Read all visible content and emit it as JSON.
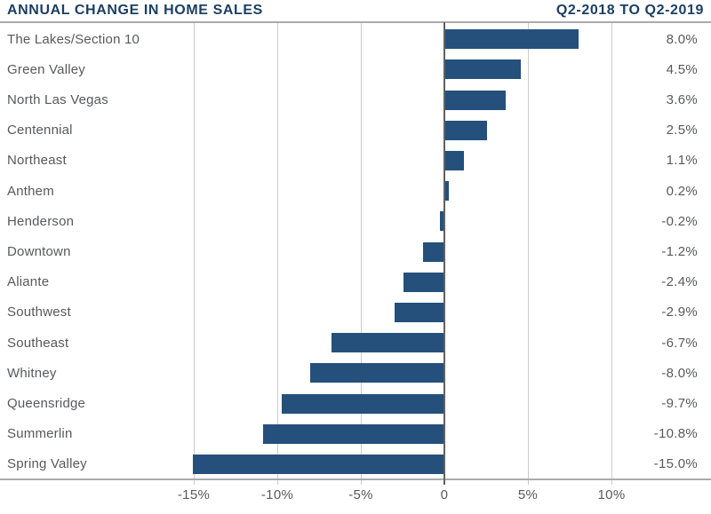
{
  "header": {
    "title": "ANNUAL CHANGE IN HOME SALES",
    "subtitle": "Q2-2018 TO Q2-2019"
  },
  "chart_data": {
    "type": "bar",
    "orientation": "horizontal",
    "title": "ANNUAL CHANGE IN HOME SALES",
    "subtitle": "Q2-2018 TO Q2-2019",
    "categories": [
      "The Lakes/Section 10",
      "Green Valley",
      "North Las Vegas",
      "Centennial",
      "Northeast",
      "Anthem",
      "Henderson",
      "Downtown",
      "Aliante",
      "Southwest",
      "Southeast",
      "Whitney",
      "Queensridge",
      "Summerlin",
      "Spring Valley"
    ],
    "values": [
      8.0,
      4.5,
      3.6,
      2.5,
      1.1,
      0.2,
      -0.2,
      -1.2,
      -2.4,
      -2.9,
      -6.7,
      -8.0,
      -9.7,
      -10.8,
      -15.0
    ],
    "value_labels": [
      "8.0%",
      "4.5%",
      "3.6%",
      "2.5%",
      "1.1%",
      "0.2%",
      "-0.2%",
      "-1.2%",
      "-2.4%",
      "-2.9%",
      "-6.7%",
      "-8.0%",
      "-9.7%",
      "-10.8%",
      "-15.0%"
    ],
    "xlabel": "",
    "ylabel": "",
    "x_axis": {
      "tick_values": [
        -15,
        -10,
        -5,
        0,
        5,
        10
      ],
      "tick_labels": [
        "-15%",
        "-10%",
        "-5%",
        "0",
        "5%",
        "10%"
      ],
      "range": [
        -15,
        10
      ]
    },
    "grid": "vertical",
    "legend": "none",
    "colors": {
      "bar": "#24507B",
      "title": "#1C3F63",
      "text": "#58595B",
      "gridline": "#CCCCCC",
      "zero_line": "#616161",
      "rule": "#ABABAB"
    }
  }
}
